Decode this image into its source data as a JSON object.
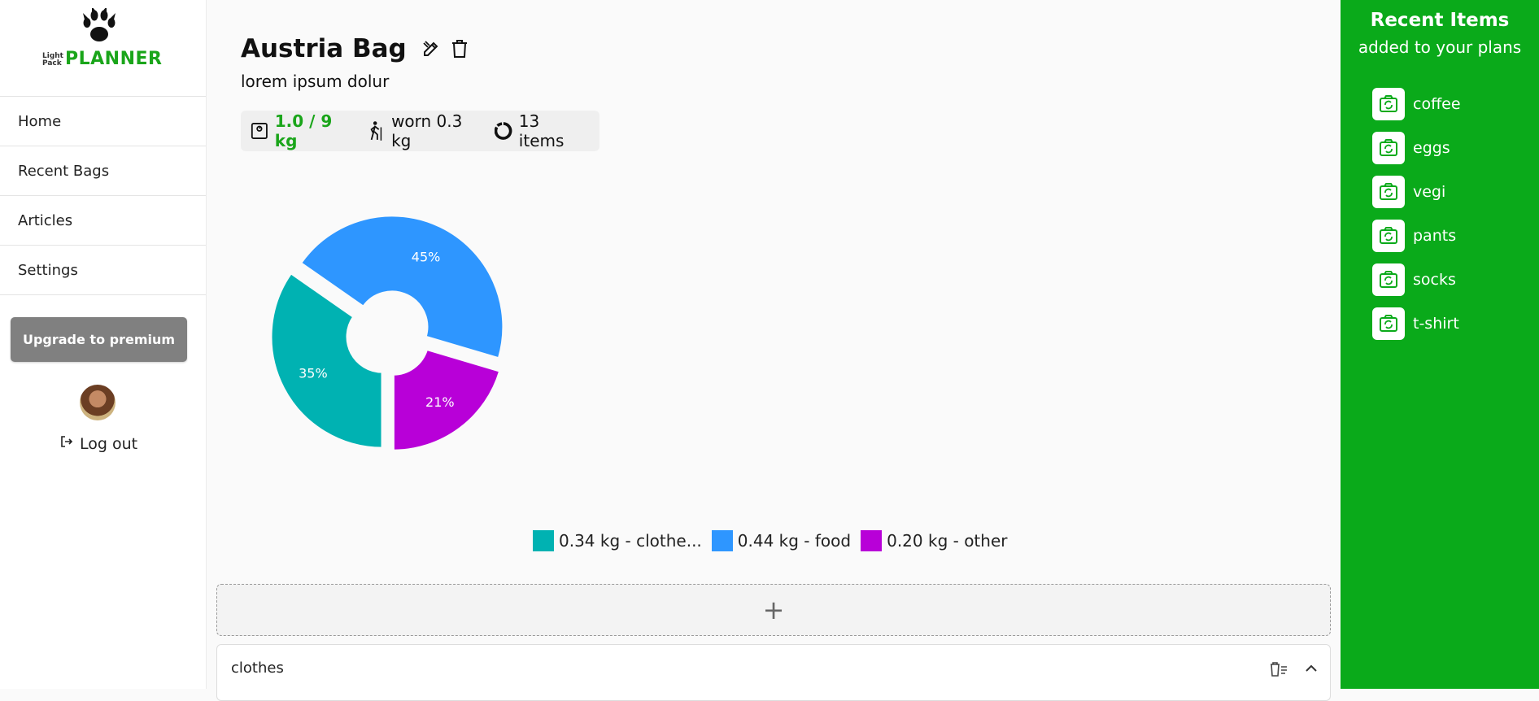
{
  "logo": {
    "light": "Light",
    "pack": "Pack",
    "planner": "PLANNER"
  },
  "nav": [
    "Home",
    "Recent Bags",
    "Articles",
    "Settings"
  ],
  "upgrade_label": "Upgrade to premium",
  "logout_label": "Log out",
  "bag": {
    "title": "Austria Bag",
    "description": "lorem ipsum dolur",
    "weight": "1.0 / 9 kg",
    "worn": "worn 0.3 kg",
    "items": "13 items"
  },
  "chart_data": {
    "type": "pie",
    "slices": [
      {
        "label": "0.34 kg - clothe...",
        "value": 0.34,
        "percent": "35%",
        "color": "#00b2b2"
      },
      {
        "label": "0.44 kg - food",
        "value": 0.44,
        "percent": "45%",
        "color": "#2e96ff"
      },
      {
        "label": "0.20 kg - other",
        "value": 0.2,
        "percent": "21%",
        "color": "#b800d8"
      }
    ],
    "legend_position": "bottom"
  },
  "add_label": "+",
  "category": {
    "name": "clothes"
  },
  "recent": {
    "title": "Recent Items",
    "subtitle": "added to your plans",
    "items": [
      "coffee",
      "eggs",
      "vegi",
      "pants",
      "socks",
      "t-shirt"
    ]
  },
  "colors": {
    "brand": "#0aaa1a",
    "upgrade": "#808080",
    "weight": "#1aa51a"
  }
}
